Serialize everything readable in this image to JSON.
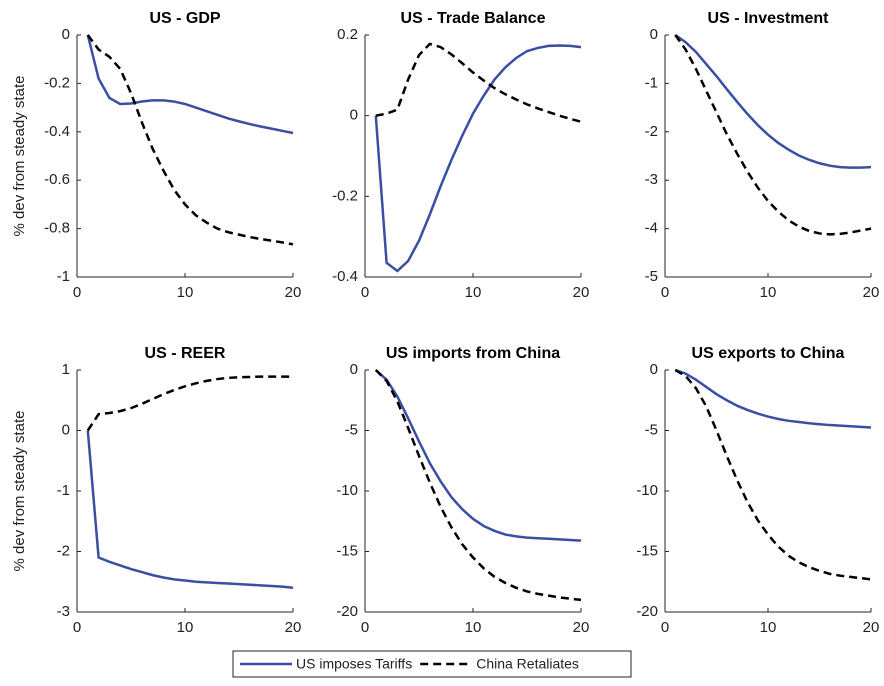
{
  "chart_data": [
    {
      "type": "line",
      "title": "US - GDP",
      "ylabel": "% dev from steady state",
      "x": [
        1,
        2,
        3,
        4,
        5,
        6,
        7,
        8,
        9,
        10,
        11,
        12,
        13,
        14,
        15,
        16,
        17,
        18,
        19,
        20
      ],
      "xlim": [
        0,
        20
      ],
      "xticks": [
        0,
        10,
        20
      ],
      "ylim": [
        -1,
        0
      ],
      "yticks": [
        -1,
        -0.8,
        -0.6,
        -0.4,
        -0.2,
        0
      ],
      "series": [
        {
          "name": "US imposes Tariffs",
          "color": "#3a4fa3",
          "style": "solid",
          "values": [
            0,
            -0.18,
            -0.26,
            -0.285,
            -0.283,
            -0.275,
            -0.27,
            -0.27,
            -0.275,
            -0.285,
            -0.3,
            -0.315,
            -0.33,
            -0.345,
            -0.357,
            -0.368,
            -0.378,
            -0.387,
            -0.396,
            -0.405
          ]
        },
        {
          "name": "China Retaliates",
          "color": "#000000",
          "style": "dashed",
          "values": [
            0,
            -0.06,
            -0.09,
            -0.14,
            -0.24,
            -0.36,
            -0.47,
            -0.56,
            -0.64,
            -0.7,
            -0.745,
            -0.775,
            -0.8,
            -0.815,
            -0.825,
            -0.835,
            -0.843,
            -0.85,
            -0.857,
            -0.865
          ]
        }
      ]
    },
    {
      "type": "line",
      "title": "US - Trade Balance",
      "x": [
        1,
        2,
        3,
        4,
        5,
        6,
        7,
        8,
        9,
        10,
        11,
        12,
        13,
        14,
        15,
        16,
        17,
        18,
        19,
        20
      ],
      "xlim": [
        0,
        20
      ],
      "xticks": [
        0,
        10,
        20
      ],
      "ylim": [
        -0.4,
        0.2
      ],
      "yticks": [
        -0.4,
        -0.2,
        0,
        0.2
      ],
      "series": [
        {
          "name": "US imposes Tariffs",
          "color": "#3a4fa3",
          "style": "solid",
          "values": [
            0,
            -0.365,
            -0.385,
            -0.36,
            -0.31,
            -0.245,
            -0.175,
            -0.11,
            -0.05,
            0.005,
            0.05,
            0.09,
            0.12,
            0.143,
            0.16,
            0.168,
            0.173,
            0.174,
            0.173,
            0.17
          ]
        },
        {
          "name": "China Retaliates",
          "color": "#000000",
          "style": "dashed",
          "values": [
            0,
            0.005,
            0.015,
            0.09,
            0.15,
            0.178,
            0.17,
            0.152,
            0.13,
            0.107,
            0.087,
            0.068,
            0.053,
            0.04,
            0.028,
            0.018,
            0.009,
            0,
            -0.008,
            -0.015
          ]
        }
      ]
    },
    {
      "type": "line",
      "title": "US - Investment",
      "x": [
        1,
        2,
        3,
        4,
        5,
        6,
        7,
        8,
        9,
        10,
        11,
        12,
        13,
        14,
        15,
        16,
        17,
        18,
        19,
        20
      ],
      "xlim": [
        0,
        20
      ],
      "xticks": [
        0,
        10,
        20
      ],
      "ylim": [
        -5,
        0
      ],
      "yticks": [
        -5,
        -4,
        -3,
        -2,
        -1,
        0
      ],
      "series": [
        {
          "name": "US imposes Tariffs",
          "color": "#3a4fa3",
          "style": "solid",
          "values": [
            0,
            -0.15,
            -0.35,
            -0.6,
            -0.85,
            -1.12,
            -1.38,
            -1.63,
            -1.86,
            -2.06,
            -2.23,
            -2.37,
            -2.49,
            -2.58,
            -2.65,
            -2.7,
            -2.73,
            -2.74,
            -2.74,
            -2.73
          ]
        },
        {
          "name": "China Retaliates",
          "color": "#000000",
          "style": "dashed",
          "values": [
            0,
            -0.3,
            -0.7,
            -1.15,
            -1.6,
            -2.05,
            -2.45,
            -2.82,
            -3.15,
            -3.43,
            -3.65,
            -3.83,
            -3.96,
            -4.05,
            -4.1,
            -4.12,
            -4.11,
            -4.08,
            -4.04,
            -4.0
          ]
        }
      ]
    },
    {
      "type": "line",
      "title": "US - REER",
      "ylabel": "% dev from steady state",
      "x": [
        1,
        2,
        3,
        4,
        5,
        6,
        7,
        8,
        9,
        10,
        11,
        12,
        13,
        14,
        15,
        16,
        17,
        18,
        19,
        20
      ],
      "xlim": [
        0,
        20
      ],
      "xticks": [
        0,
        10,
        20
      ],
      "ylim": [
        -3,
        1
      ],
      "yticks": [
        -3,
        -2,
        -1,
        0,
        1
      ],
      "series": [
        {
          "name": "US imposes Tariffs",
          "color": "#3a4fa3",
          "style": "solid",
          "values": [
            0,
            -2.1,
            -2.17,
            -2.23,
            -2.29,
            -2.34,
            -2.39,
            -2.43,
            -2.46,
            -2.48,
            -2.5,
            -2.51,
            -2.52,
            -2.53,
            -2.54,
            -2.55,
            -2.56,
            -2.57,
            -2.58,
            -2.6
          ]
        },
        {
          "name": "China Retaliates",
          "color": "#000000",
          "style": "dashed",
          "values": [
            0,
            0.27,
            0.29,
            0.32,
            0.37,
            0.44,
            0.52,
            0.6,
            0.67,
            0.73,
            0.78,
            0.82,
            0.85,
            0.87,
            0.88,
            0.885,
            0.89,
            0.89,
            0.89,
            0.89
          ]
        }
      ]
    },
    {
      "type": "line",
      "title": "US imports from China",
      "x": [
        1,
        2,
        3,
        4,
        5,
        6,
        7,
        8,
        9,
        10,
        11,
        12,
        13,
        14,
        15,
        16,
        17,
        18,
        19,
        20
      ],
      "xlim": [
        0,
        20
      ],
      "xticks": [
        0,
        10,
        20
      ],
      "ylim": [
        -20,
        0
      ],
      "yticks": [
        -20,
        -15,
        -10,
        -5,
        0
      ],
      "series": [
        {
          "name": "US imposes Tariffs",
          "color": "#3a4fa3",
          "style": "solid",
          "values": [
            0,
            -0.8,
            -2.2,
            -4,
            -5.9,
            -7.7,
            -9.2,
            -10.5,
            -11.5,
            -12.3,
            -12.9,
            -13.3,
            -13.6,
            -13.75,
            -13.85,
            -13.9,
            -13.95,
            -14,
            -14.05,
            -14.1
          ]
        },
        {
          "name": "China Retaliates",
          "color": "#000000",
          "style": "dashed",
          "values": [
            0,
            -0.9,
            -2.6,
            -4.8,
            -7.1,
            -9.3,
            -11.3,
            -13,
            -14.4,
            -15.5,
            -16.4,
            -17.1,
            -17.6,
            -18,
            -18.3,
            -18.5,
            -18.65,
            -18.8,
            -18.9,
            -19.0
          ]
        }
      ]
    },
    {
      "type": "line",
      "title": "US exports to China",
      "x": [
        1,
        2,
        3,
        4,
        5,
        6,
        7,
        8,
        9,
        10,
        11,
        12,
        13,
        14,
        15,
        16,
        17,
        18,
        19,
        20
      ],
      "xlim": [
        0,
        20
      ],
      "xticks": [
        0,
        10,
        20
      ],
      "ylim": [
        -20,
        0
      ],
      "yticks": [
        -20,
        -15,
        -10,
        -5,
        0
      ],
      "series": [
        {
          "name": "US imposes Tariffs",
          "color": "#3a4fa3",
          "style": "solid",
          "values": [
            0,
            -0.3,
            -0.8,
            -1.4,
            -2.0,
            -2.5,
            -2.95,
            -3.3,
            -3.6,
            -3.85,
            -4.05,
            -4.2,
            -4.3,
            -4.4,
            -4.48,
            -4.55,
            -4.6,
            -4.65,
            -4.7,
            -4.75
          ]
        },
        {
          "name": "China Retaliates",
          "color": "#000000",
          "style": "dashed",
          "values": [
            0,
            -0.5,
            -1.5,
            -3,
            -5,
            -7.1,
            -9.1,
            -10.9,
            -12.4,
            -13.6,
            -14.6,
            -15.35,
            -15.9,
            -16.3,
            -16.6,
            -16.85,
            -17,
            -17.1,
            -17.2,
            -17.3
          ]
        }
      ]
    }
  ]
}
